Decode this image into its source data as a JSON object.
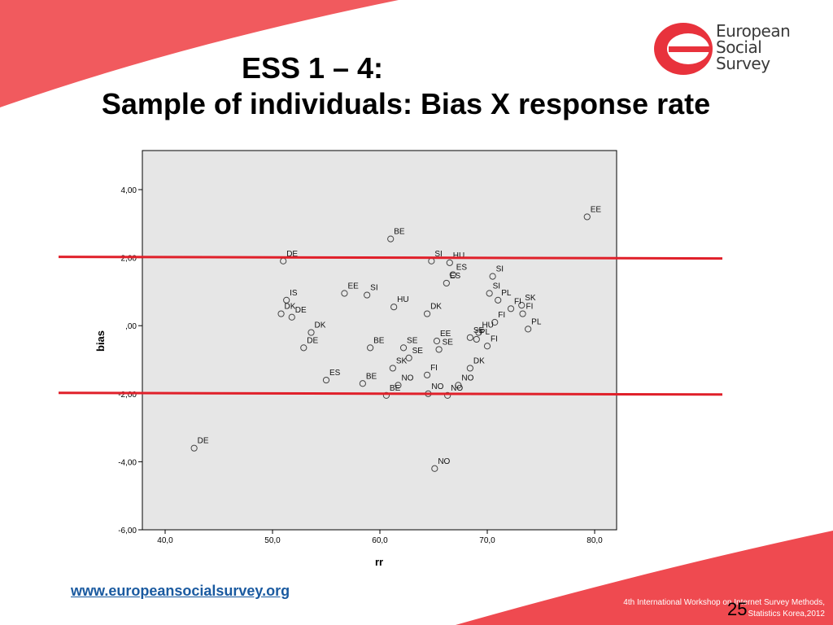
{
  "slide": {
    "title_line1": "ESS 1 – 4:",
    "title_line2": "Sample of individuals: Bias X response rate",
    "url": "www.europeansocialsurvey.org",
    "footer_line1": "4th International Workshop on Internet Survey Methods,",
    "footer_line2": "Statistics Korea,2012",
    "page_number": "25",
    "accent_color": "#e8323c"
  },
  "logo": {
    "line1": "European",
    "line2": "Social",
    "line3": "Survey"
  },
  "chart_data": {
    "type": "scatter",
    "xlabel": "rr",
    "ylabel": "bias",
    "xlim": [
      37.5,
      82.0
    ],
    "ylim": [
      -6.0,
      5.0
    ],
    "xticks": [
      40,
      50,
      60,
      70,
      80
    ],
    "xtick_labels": [
      "40,0",
      "50,0",
      "60,0",
      "70,0",
      "80,0"
    ],
    "yticks": [
      4,
      2,
      0,
      -2,
      -4,
      -6
    ],
    "ytick_labels": [
      "4,00",
      "2,00",
      ",00",
      "-2,00",
      "-4,00",
      "-6,00"
    ],
    "reference_lines_y": [
      2.0,
      -2.0
    ],
    "reference_line_color": "#e0202a",
    "plot_background": "#e6e6e6",
    "points": [
      {
        "label": "EE",
        "x": 79.3,
        "y": 3.2
      },
      {
        "label": "BE",
        "x": 61.0,
        "y": 2.55
      },
      {
        "label": "DE",
        "x": 51.0,
        "y": 1.9
      },
      {
        "label": "SI",
        "x": 64.8,
        "y": 1.9
      },
      {
        "label": "HU",
        "x": 66.5,
        "y": 1.85
      },
      {
        "label": "ES",
        "x": 66.8,
        "y": 1.5
      },
      {
        "label": "SI",
        "x": 70.5,
        "y": 1.45
      },
      {
        "label": "EE",
        "x": 56.7,
        "y": 0.95
      },
      {
        "label": "SI",
        "x": 58.8,
        "y": 0.9
      },
      {
        "label": "ES",
        "x": 66.2,
        "y": 1.25
      },
      {
        "label": "SI",
        "x": 70.2,
        "y": 0.95
      },
      {
        "label": "PL",
        "x": 71.0,
        "y": 0.75
      },
      {
        "label": "IS",
        "x": 51.3,
        "y": 0.75
      },
      {
        "label": "HU",
        "x": 61.3,
        "y": 0.55
      },
      {
        "label": "SK",
        "x": 73.2,
        "y": 0.6
      },
      {
        "label": "FI",
        "x": 72.2,
        "y": 0.5
      },
      {
        "label": "DK",
        "x": 50.8,
        "y": 0.35
      },
      {
        "label": "DK",
        "x": 64.4,
        "y": 0.35
      },
      {
        "label": "FI",
        "x": 73.3,
        "y": 0.35
      },
      {
        "label": "DE",
        "x": 51.8,
        "y": 0.25
      },
      {
        "label": "FI",
        "x": 70.7,
        "y": 0.1
      },
      {
        "label": "PL",
        "x": 73.8,
        "y": -0.1
      },
      {
        "label": "DK",
        "x": 53.6,
        "y": -0.2
      },
      {
        "label": "HU",
        "x": 69.2,
        "y": -0.2
      },
      {
        "label": "EE",
        "x": 65.3,
        "y": -0.45
      },
      {
        "label": "SE",
        "x": 68.4,
        "y": -0.35
      },
      {
        "label": "PL",
        "x": 69.0,
        "y": -0.4
      },
      {
        "label": "BE",
        "x": 59.1,
        "y": -0.65
      },
      {
        "label": "SE",
        "x": 62.2,
        "y": -0.65
      },
      {
        "label": "SE",
        "x": 65.5,
        "y": -0.7
      },
      {
        "label": "FI",
        "x": 70.0,
        "y": -0.6
      },
      {
        "label": "DE",
        "x": 52.9,
        "y": -0.65
      },
      {
        "label": "SE",
        "x": 62.7,
        "y": -0.95
      },
      {
        "label": "SK",
        "x": 61.2,
        "y": -1.25
      },
      {
        "label": "DK",
        "x": 68.4,
        "y": -1.25
      },
      {
        "label": "FI",
        "x": 64.4,
        "y": -1.45
      },
      {
        "label": "ES",
        "x": 55.0,
        "y": -1.6
      },
      {
        "label": "BE",
        "x": 58.4,
        "y": -1.7
      },
      {
        "label": "NO",
        "x": 61.7,
        "y": -1.75
      },
      {
        "label": "NO",
        "x": 67.3,
        "y": -1.75
      },
      {
        "label": "NO",
        "x": 64.5,
        "y": -2.0
      },
      {
        "label": "BE",
        "x": 60.6,
        "y": -2.05
      },
      {
        "label": "NO",
        "x": 66.3,
        "y": -2.05
      },
      {
        "label": "DE",
        "x": 42.7,
        "y": -3.6
      },
      {
        "label": "NO",
        "x": 65.1,
        "y": -4.2
      }
    ]
  }
}
